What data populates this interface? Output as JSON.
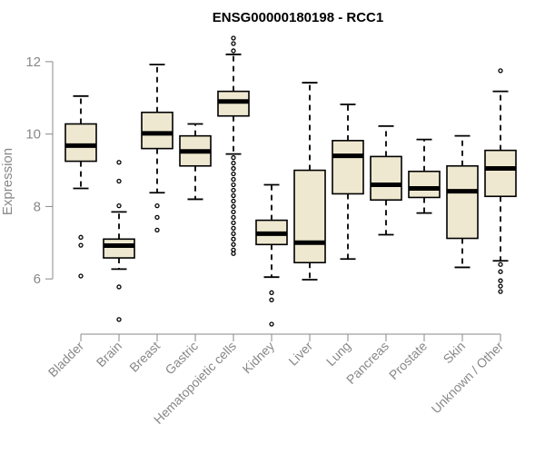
{
  "chart_data": {
    "type": "box",
    "title": "ENSG00000180198 - RCC1",
    "xlabel": "",
    "ylabel": "Expression",
    "ylim": [
      4.55,
      12.75
    ],
    "yticks": [
      6,
      8,
      10,
      12
    ],
    "categories": [
      "Bladder",
      "Brain",
      "Breast",
      "Gastric",
      "Hematopoietic cells",
      "Kidney",
      "Liver",
      "Lung",
      "Pancreas",
      "Prostate",
      "Skin",
      "Unknown / Other"
    ],
    "boxes": [
      {
        "name": "Bladder",
        "min": 8.5,
        "q1": 9.25,
        "median": 9.68,
        "q3": 10.28,
        "max": 11.05,
        "outliers": [
          7.15,
          6.93,
          6.08
        ]
      },
      {
        "name": "Brain",
        "min": 6.27,
        "q1": 6.58,
        "median": 6.92,
        "q3": 7.1,
        "max": 7.85,
        "outliers": [
          9.22,
          8.7,
          8.02,
          5.78,
          4.88
        ]
      },
      {
        "name": "Breast",
        "min": 8.38,
        "q1": 9.6,
        "median": 10.02,
        "q3": 10.6,
        "max": 11.92,
        "outliers": [
          8.02,
          7.7,
          7.35
        ]
      },
      {
        "name": "Gastric",
        "min": 8.2,
        "q1": 9.12,
        "median": 9.52,
        "q3": 9.95,
        "max": 10.28,
        "outliers": []
      },
      {
        "name": "Hematopoietic cells",
        "min": 9.45,
        "q1": 10.5,
        "median": 10.9,
        "q3": 11.18,
        "max": 12.2,
        "outliers": [
          12.65,
          12.5,
          12.3,
          9.35,
          9.2,
          9.05,
          8.9,
          8.75,
          8.6,
          8.45,
          8.3,
          8.15,
          8.0,
          7.85,
          7.7,
          7.55,
          7.4,
          7.25,
          7.1,
          6.95,
          6.8,
          6.7
        ]
      },
      {
        "name": "Kidney",
        "min": 6.05,
        "q1": 6.95,
        "median": 7.25,
        "q3": 7.62,
        "max": 8.6,
        "outliers": [
          5.62,
          5.42,
          4.75
        ]
      },
      {
        "name": "Liver",
        "min": 5.98,
        "q1": 6.45,
        "median": 7.0,
        "q3": 9.0,
        "max": 11.42,
        "outliers": []
      },
      {
        "name": "Lung",
        "min": 6.55,
        "q1": 8.35,
        "median": 9.4,
        "q3": 9.82,
        "max": 10.82,
        "outliers": []
      },
      {
        "name": "Pancreas",
        "min": 7.22,
        "q1": 8.18,
        "median": 8.6,
        "q3": 9.38,
        "max": 10.22,
        "outliers": []
      },
      {
        "name": "Prostate",
        "min": 7.82,
        "q1": 8.25,
        "median": 8.5,
        "q3": 8.97,
        "max": 9.85,
        "outliers": []
      },
      {
        "name": "Skin",
        "min": 6.32,
        "q1": 7.12,
        "median": 8.42,
        "q3": 9.12,
        "max": 9.95,
        "outliers": []
      },
      {
        "name": "Unknown / Other",
        "min": 6.5,
        "q1": 8.28,
        "median": 9.05,
        "q3": 9.55,
        "max": 11.18,
        "outliers": [
          11.75,
          6.4,
          6.2,
          5.95,
          5.8,
          5.65
        ]
      }
    ]
  }
}
